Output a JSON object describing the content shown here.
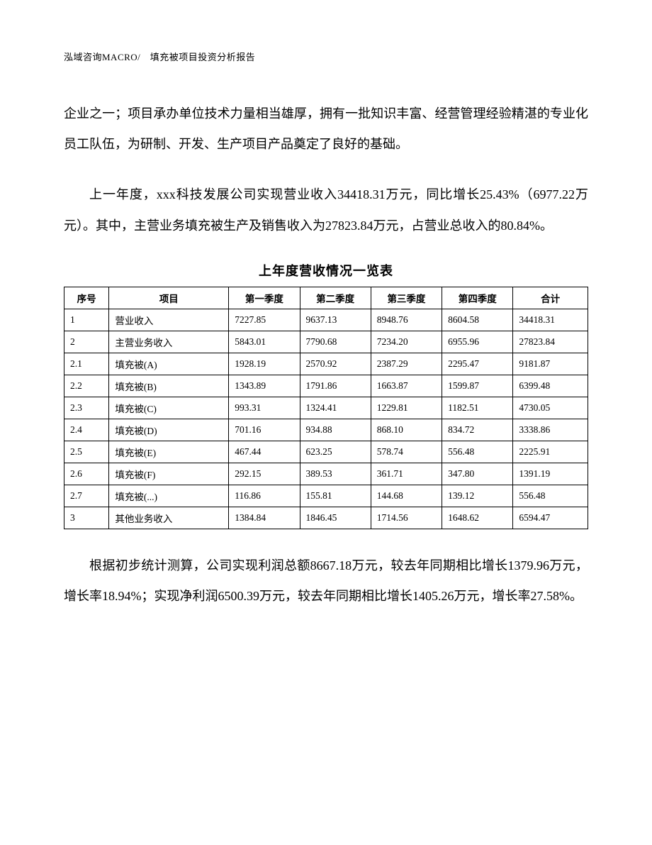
{
  "header": "泓域咨询MACRO/　填充被项目投资分析报告",
  "paragraphs": {
    "p1": "企业之一；项目承办单位技术力量相当雄厚，拥有一批知识丰富、经营管理经验精湛的专业化员工队伍，为研制、开发、生产项目产品奠定了良好的基础。",
    "p2": "上一年度，xxx科技发展公司实现营业收入34418.31万元，同比增长25.43%（6977.22万元）。其中，主营业务填充被生产及销售收入为27823.84万元，占营业总收入的80.84%。",
    "p3": "根据初步统计测算，公司实现利润总额8667.18万元，较去年同期相比增长1379.96万元，增长率18.94%；实现净利润6500.39万元，较去年同期相比增长1405.26万元，增长率27.58%。"
  },
  "table": {
    "title": "上年度营收情况一览表",
    "columns": [
      "序号",
      "项目",
      "第一季度",
      "第二季度",
      "第三季度",
      "第四季度",
      "合计"
    ],
    "rows": [
      [
        "1",
        "营业收入",
        "7227.85",
        "9637.13",
        "8948.76",
        "8604.58",
        "34418.31"
      ],
      [
        "2",
        "主营业务收入",
        "5843.01",
        "7790.68",
        "7234.20",
        "6955.96",
        "27823.84"
      ],
      [
        "2.1",
        "填充被(A)",
        "1928.19",
        "2570.92",
        "2387.29",
        "2295.47",
        "9181.87"
      ],
      [
        "2.2",
        "填充被(B)",
        "1343.89",
        "1791.86",
        "1663.87",
        "1599.87",
        "6399.48"
      ],
      [
        "2.3",
        "填充被(C)",
        "993.31",
        "1324.41",
        "1229.81",
        "1182.51",
        "4730.05"
      ],
      [
        "2.4",
        "填充被(D)",
        "701.16",
        "934.88",
        "868.10",
        "834.72",
        "3338.86"
      ],
      [
        "2.5",
        "填充被(E)",
        "467.44",
        "623.25",
        "578.74",
        "556.48",
        "2225.91"
      ],
      [
        "2.6",
        "填充被(F)",
        "292.15",
        "389.53",
        "361.71",
        "347.80",
        "1391.19"
      ],
      [
        "2.7",
        "填充被(...)",
        "116.86",
        "155.81",
        "144.68",
        "139.12",
        "556.48"
      ],
      [
        "3",
        "其他业务收入",
        "1384.84",
        "1846.45",
        "1714.56",
        "1648.62",
        "6594.47"
      ]
    ]
  }
}
